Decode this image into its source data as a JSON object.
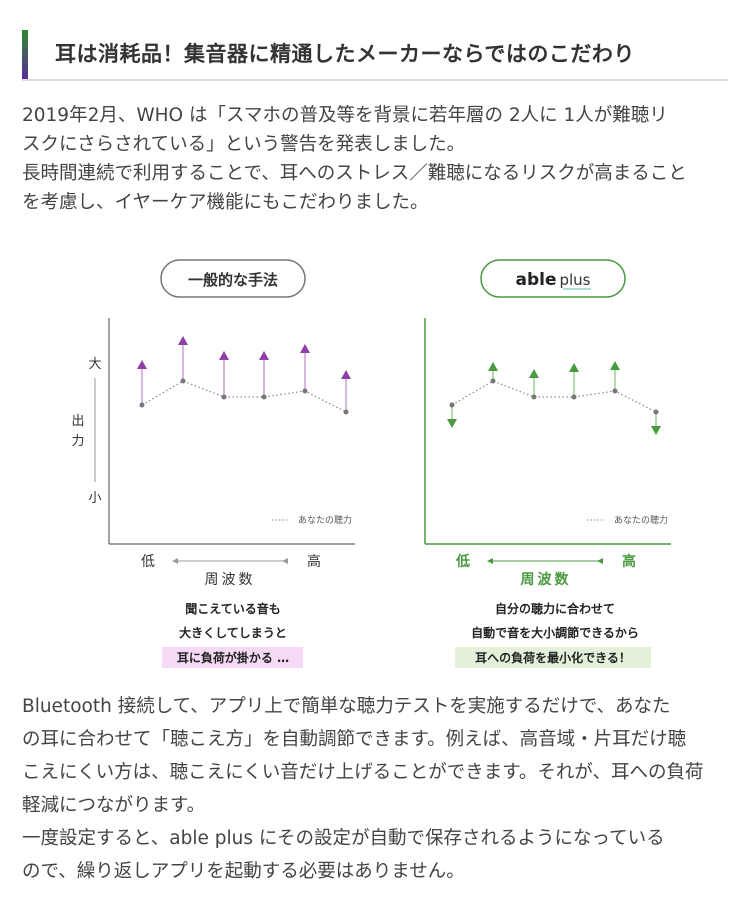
{
  "heading": {
    "title": "耳は消耗品！集音器に精通したメーカーならではのこだわり"
  },
  "intro": {
    "lines": [
      "2019年2月、WHO は「スマホの普及等を背景に若年層の 2人に 1人が難聴リ",
      "スクにさらされている」という警告を発表しました。",
      "長時間連続で利用することで、耳へのストレス／難聴になるリスクが高まること",
      "を考慮し、イヤーケア機能にもこだわりました。"
    ]
  },
  "diagram": {
    "legend": "あなたの聴力",
    "y_high": "大",
    "y_low": "小",
    "y_label_1": "出",
    "y_label_2": "力",
    "x_low": "低",
    "x_high": "高",
    "x_label": "周波数",
    "left": {
      "pill": "一般的な手法",
      "caption_lines": [
        "聞こえている音も",
        "大きくしてしまうと"
      ],
      "highlight": "耳に負荷が掛かる …",
      "accent": "#8e3fa8",
      "highlight_bg": "#f5d9f5"
    },
    "right": {
      "pill_logo": "able plus",
      "caption_lines": [
        "自分の聴力に合わせて",
        "自動で音を大小調節できるから"
      ],
      "highlight": "耳への負荷を最小化できる！",
      "accent": "#4a9a40",
      "highlight_bg": "#e3f0da"
    }
  },
  "body": {
    "lines": [
      "Bluetooth 接続して、アプリ上で簡単な聴力テストを実施するだけで、あなた",
      "の耳に合わせて「聴こえ方」を自動調節できます。例えば、高音域・片耳だけ聴",
      "こえにくい方は、聴こえにくい音だけ上げることができます。それが、耳への負荷",
      "軽減につながります。",
      "一度設定すると、able plus にその設定が自動で保存されるようになっている",
      "ので、繰り返しアプリを起動する必要はありません。"
    ]
  }
}
